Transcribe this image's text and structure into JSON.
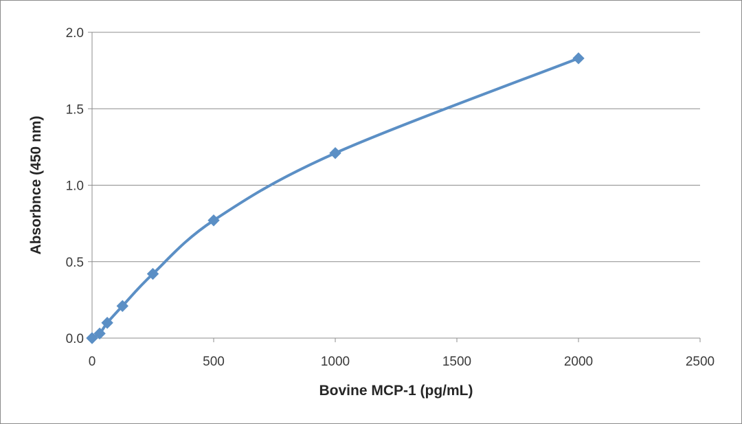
{
  "chart_data": {
    "type": "scatter",
    "title": "",
    "xlabel": "Bovine MCP-1 (pg/mL)",
    "ylabel": "Absorbnce (450 nm)",
    "xlim": [
      0,
      2500
    ],
    "ylim": [
      0,
      2.0
    ],
    "x_ticks": [
      "0",
      "500",
      "1000",
      "1500",
      "2000",
      "2500"
    ],
    "y_ticks": [
      "0.0",
      "0.5",
      "1.0",
      "1.5",
      "2.0"
    ],
    "grid": "horizontal",
    "legend": "none",
    "series": [
      {
        "x": [
          0,
          31.25,
          62.5,
          125,
          250,
          500,
          1000,
          2000
        ],
        "y": [
          0.0,
          0.03,
          0.1,
          0.21,
          0.42,
          0.77,
          1.21,
          1.83
        ],
        "smoothed": true,
        "marker": "diamond",
        "color": "#5b8fc5"
      }
    ]
  }
}
